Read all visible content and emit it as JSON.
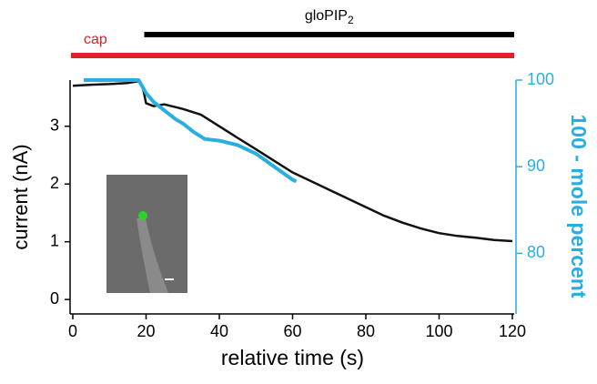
{
  "chart_data": {
    "type": "line",
    "x_label": "relative time (s)",
    "y_label": "current (nA)",
    "y2_label": "100 - mole percent",
    "xlim": [
      0,
      120
    ],
    "xticks": [
      0,
      20,
      40,
      60,
      80,
      100,
      120
    ],
    "ylim": [
      -0.25,
      3.8
    ],
    "yticks": [
      0,
      1,
      2,
      3
    ],
    "y2lim": [
      73,
      100
    ],
    "y2ticks": [
      80,
      90,
      100
    ],
    "y2color": "#29aee0",
    "series": [
      {
        "color": "#111111",
        "axis": "y",
        "x": [
          0,
          5,
          10,
          15,
          18,
          19,
          20,
          22,
          25,
          30,
          35,
          40,
          45,
          50,
          55,
          60,
          65,
          70,
          75,
          80,
          85,
          90,
          95,
          100,
          105,
          110,
          115,
          120
        ],
        "values": [
          3.7,
          3.72,
          3.73,
          3.75,
          3.78,
          3.7,
          3.4,
          3.35,
          3.38,
          3.3,
          3.2,
          3.0,
          2.8,
          2.6,
          2.4,
          2.2,
          2.05,
          1.9,
          1.75,
          1.6,
          1.45,
          1.33,
          1.23,
          1.15,
          1.1,
          1.07,
          1.03,
          1.01
        ]
      },
      {
        "color": "#29aee0",
        "axis": "y2",
        "x": [
          3,
          10,
          18,
          20,
          22,
          25,
          28,
          30,
          33,
          36,
          40,
          45,
          50,
          55,
          60,
          61
        ],
        "values": [
          100,
          100,
          100,
          98.5,
          97.5,
          96.5,
          95.5,
          95,
          94,
          93.2,
          93,
          92.5,
          91.5,
          90,
          88.5,
          88.3
        ]
      }
    ],
    "annotations": [
      {
        "label": "cap",
        "x": [
          0,
          120
        ],
        "color": "#e0202a"
      },
      {
        "label": "gloPIP",
        "label_sub": "2",
        "x": [
          20,
          120
        ],
        "color": "#000000"
      }
    ]
  }
}
